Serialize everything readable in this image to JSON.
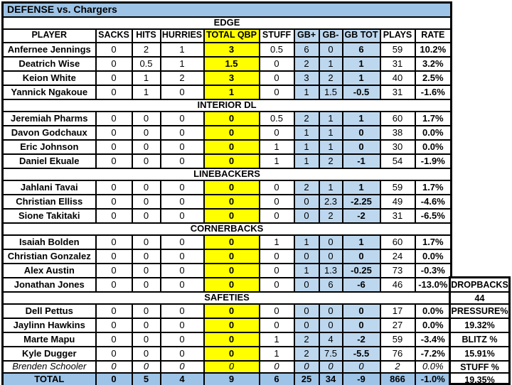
{
  "title": "DEFENSE vs. Chargers",
  "table": {
    "columns": [
      "PLAYER",
      "SACKS",
      "HITS",
      "HURRIES",
      "TOTAL QBP",
      "STUFF",
      "GB+",
      "GB-",
      "GB TOT",
      "PLAYS",
      "RATE"
    ],
    "sections": [
      {
        "header": "EDGE",
        "rows": [
          {
            "cells": [
              "Anfernee Jennings",
              "0",
              "2",
              "1",
              "3",
              "0.5",
              "6",
              "0",
              "6",
              "59",
              "10.2%"
            ]
          },
          {
            "cells": [
              "Deatrich Wise",
              "0",
              "0.5",
              "1",
              "1.5",
              "0",
              "2",
              "1",
              "1",
              "31",
              "3.2%"
            ]
          },
          {
            "cells": [
              "Keion White",
              "0",
              "1",
              "2",
              "3",
              "0",
              "3",
              "2",
              "1",
              "40",
              "2.5%"
            ]
          },
          {
            "cells": [
              "Yannick Ngakoue",
              "0",
              "1",
              "0",
              "1",
              "0",
              "1",
              "1.5",
              "-0.5",
              "31",
              "-1.6%"
            ]
          }
        ]
      },
      {
        "header": "INTERIOR DL",
        "rows": [
          {
            "cells": [
              "Jeremiah Pharms",
              "0",
              "0",
              "0",
              "0",
              "0.5",
              "2",
              "1",
              "1",
              "60",
              "1.7%"
            ]
          },
          {
            "cells": [
              "Davon Godchaux",
              "0",
              "0",
              "0",
              "0",
              "0",
              "1",
              "1",
              "0",
              "38",
              "0.0%"
            ]
          },
          {
            "cells": [
              "Eric Johnson",
              "0",
              "0",
              "0",
              "0",
              "1",
              "1",
              "1",
              "0",
              "30",
              "0.0%"
            ]
          },
          {
            "cells": [
              "Daniel Ekuale",
              "0",
              "0",
              "0",
              "0",
              "1",
              "1",
              "2",
              "-1",
              "54",
              "-1.9%"
            ]
          }
        ]
      },
      {
        "header": "LINEBACKERS",
        "rows": [
          {
            "cells": [
              "Jahlani Tavai",
              "0",
              "0",
              "0",
              "0",
              "0",
              "2",
              "1",
              "1",
              "59",
              "1.7%"
            ]
          },
          {
            "cells": [
              "Christian Elliss",
              "0",
              "0",
              "0",
              "0",
              "0",
              "0",
              "2.3",
              "-2.25",
              "49",
              "-4.6%"
            ]
          },
          {
            "cells": [
              "Sione Takitaki",
              "0",
              "0",
              "0",
              "0",
              "0",
              "0",
              "2",
              "-2",
              "31",
              "-6.5%"
            ]
          }
        ]
      },
      {
        "header": "CORNERBACKS",
        "rows": [
          {
            "cells": [
              "Isaiah Bolden",
              "0",
              "0",
              "0",
              "0",
              "1",
              "1",
              "0",
              "1",
              "60",
              "1.7%"
            ]
          },
          {
            "cells": [
              "Christian Gonzalez",
              "0",
              "0",
              "0",
              "0",
              "0",
              "0",
              "0",
              "0",
              "24",
              "0.0%"
            ]
          },
          {
            "cells": [
              "Alex Austin",
              "0",
              "0",
              "0",
              "0",
              "0",
              "1",
              "1.3",
              "-0.25",
              "73",
              "-0.3%"
            ]
          },
          {
            "cells": [
              "Jonathan Jones",
              "0",
              "0",
              "0",
              "0",
              "0",
              "0",
              "6",
              "-6",
              "46",
              "-13.0%"
            ]
          }
        ]
      },
      {
        "header": "SAFETIES",
        "rows": [
          {
            "cells": [
              "Dell Pettus",
              "0",
              "0",
              "0",
              "0",
              "0",
              "0",
              "0",
              "0",
              "17",
              "0.0%"
            ]
          },
          {
            "cells": [
              "Jaylinn Hawkins",
              "0",
              "0",
              "0",
              "0",
              "0",
              "0",
              "0",
              "0",
              "27",
              "0.0%"
            ]
          },
          {
            "cells": [
              "Marte Mapu",
              "0",
              "0",
              "0",
              "0",
              "1",
              "2",
              "4",
              "-2",
              "59",
              "-3.4%"
            ]
          },
          {
            "cells": [
              "Kyle Dugger",
              "0",
              "0",
              "0",
              "0",
              "1",
              "2",
              "7.5",
              "-5.5",
              "76",
              "-7.2%"
            ]
          },
          {
            "cells": [
              "Brenden Schooler",
              "0",
              "0",
              "0",
              "0",
              "0",
              "0",
              "0",
              "0",
              "2",
              "0.0%"
            ],
            "italic": true
          }
        ]
      }
    ],
    "total_row": {
      "cells": [
        "TOTAL",
        "0",
        "5",
        "4",
        "9",
        "6",
        "25",
        "34",
        "-9",
        "866",
        "-1.0%"
      ]
    }
  },
  "side_panel": {
    "entries": [
      {
        "label": "DROPBACKS",
        "value": "44"
      },
      {
        "label": "PRESSURE%",
        "value": "19.32%"
      },
      {
        "label": "BLITZ %",
        "value": "15.91%"
      },
      {
        "label": "STUFF %",
        "value": "19.35%"
      }
    ]
  },
  "colors": {
    "title_bg": "#9DC3E6",
    "blue_cell": "#BDD7EE",
    "yellow_cell": "#FFFF00",
    "total_row_bg": "#9DC3E6",
    "border": "#000000",
    "background": "#FFFFFF"
  }
}
